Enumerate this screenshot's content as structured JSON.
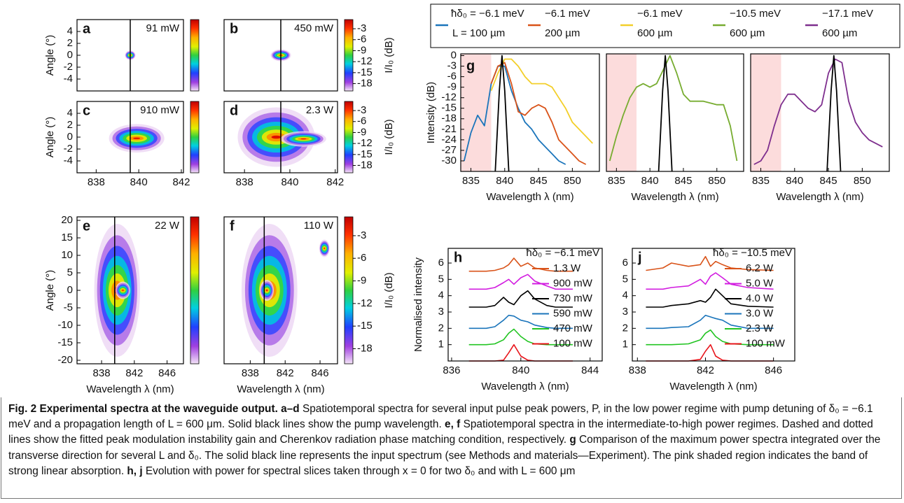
{
  "chart_data": [
    {
      "type": "heatmap",
      "panel_label": "a",
      "annotation": "91 mW",
      "ylabel": "Angle (°)",
      "xlim": [
        837.1,
        842.1
      ],
      "ylim": [
        -6,
        6
      ],
      "yticks": [
        -4,
        -2,
        0,
        2,
        4
      ],
      "pump_wavelength": 839.6,
      "emission": [
        {
          "x": 839.6,
          "y": 0,
          "dx": 0.25,
          "dy": 0.8
        }
      ],
      "colorbar": true
    },
    {
      "type": "heatmap",
      "panel_label": "b",
      "annotation": "450 mW",
      "xlim": [
        837.1,
        842.1
      ],
      "ylim": [
        -6,
        6
      ],
      "pump_wavelength": 839.6,
      "emission": [
        {
          "x": 839.6,
          "y": 0,
          "dx": 0.45,
          "dy": 1.0
        }
      ],
      "colorbar": {
        "label": "I/I₀ (dB)",
        "lim": [
          -20,
          -0.5
        ],
        "ticks": [
          -3,
          -6,
          -9,
          -12,
          -15,
          -18
        ]
      }
    },
    {
      "type": "heatmap",
      "panel_label": "c",
      "annotation": "910 mW",
      "ylabel": "Angle (°)",
      "xlim": [
        837.1,
        842.1
      ],
      "ylim": [
        -6,
        6
      ],
      "yticks": [
        -4,
        -2,
        0,
        2,
        4
      ],
      "xticks": [
        838,
        840,
        842
      ],
      "pump_wavelength": 839.6,
      "emission": [
        {
          "x": 839.9,
          "y": -0.2,
          "dx": 1.3,
          "dy": 2.4
        }
      ],
      "colorbar": true
    },
    {
      "type": "heatmap",
      "panel_label": "d",
      "annotation": "2.3 W",
      "xlim": [
        837.1,
        842.1
      ],
      "ylim": [
        -6,
        6
      ],
      "xticks": [
        838,
        840,
        842
      ],
      "pump_wavelength": 839.6,
      "emission": [
        {
          "x": 839.4,
          "y": 0,
          "dx": 1.7,
          "dy": 5.0
        },
        {
          "x": 840.6,
          "y": -0.3,
          "dx": 1.0,
          "dy": 1.3
        }
      ],
      "colorbar": {
        "label": "I/I₀ (dB)",
        "lim": [
          -20,
          -0.5
        ],
        "ticks": [
          -3,
          -6,
          -9,
          -12,
          -15,
          -18
        ]
      }
    },
    {
      "type": "heatmap",
      "panel_label": "e",
      "annotation": "22 W",
      "ylabel": "Angle (°)",
      "xlabel": "Wavelength λ (nm)",
      "xlim": [
        835,
        848
      ],
      "ylim": [
        -21,
        21
      ],
      "yticks": [
        -20,
        -15,
        -10,
        -5,
        0,
        5,
        10,
        15,
        20
      ],
      "xticks": [
        838,
        842,
        846
      ],
      "pump_wavelength": 839.6,
      "emission": [
        {
          "x": 839.9,
          "y": 0,
          "dx": 2.8,
          "dy": 19
        },
        {
          "x": 840.6,
          "y": 0,
          "dx": 0.9,
          "dy": 2.5
        }
      ],
      "colorbar": true
    },
    {
      "type": "heatmap",
      "panel_label": "f",
      "annotation": "110 W",
      "xlabel": "Wavelength λ (nm)",
      "xlim": [
        835,
        848
      ],
      "ylim": [
        -21,
        21
      ],
      "xticks": [
        838,
        842,
        846
      ],
      "pump_wavelength": 839.6,
      "emission": [
        {
          "x": 840.2,
          "y": 0,
          "dx": 3.2,
          "dy": 19
        },
        {
          "x": 839.9,
          "y": 0,
          "dx": 0.8,
          "dy": 3
        },
        {
          "x": 846.5,
          "y": 12,
          "dx": 0.6,
          "dy": 2.5
        }
      ],
      "colorbar": {
        "label": "I/I₀ (dB)",
        "lim": [
          -20,
          -0.5
        ],
        "ticks": [
          -3,
          -6,
          -9,
          -12,
          -15,
          -18
        ]
      }
    },
    {
      "type": "line",
      "panel_label": "g",
      "ylabel": "Intensity (dB)",
      "xlabel": "Wavelength λ (nm)",
      "xlim": [
        833.5,
        854
      ],
      "ylim": [
        -33,
        0.5
      ],
      "xticks": [
        835,
        840,
        845,
        850
      ],
      "yticks": [
        0,
        -3,
        -6,
        -9,
        -12,
        -15,
        -18,
        -21,
        -24,
        -27,
        -30
      ],
      "absorption_band": [
        833.5,
        838
      ],
      "x": [
        834,
        835,
        836,
        837,
        838,
        839,
        840,
        841,
        842,
        843,
        844,
        845,
        846,
        847,
        848,
        849,
        850,
        851,
        852,
        853
      ],
      "series": [
        {
          "name": "ħδ₀ = −6.1 meV",
          "length": "L = 100 µm",
          "color": "#1b75bb",
          "values": [
            -30,
            -22,
            -17,
            -20,
            -8,
            -3,
            -3,
            -10,
            -15,
            -19,
            -21,
            -24,
            -26,
            -28,
            -30,
            -31,
            null,
            null,
            null,
            null
          ]
        },
        {
          "name": "−6.1 meV",
          "length": "200 µm",
          "color": "#d95319",
          "values": [
            null,
            null,
            null,
            null,
            -8,
            -3,
            -2,
            -8,
            -16,
            -17,
            -15,
            -14,
            -15,
            -19,
            -24,
            -26,
            -28,
            -30,
            -31,
            null
          ]
        },
        {
          "name": "−6.1 meV",
          "length": "600 µm",
          "color": "#f3cf2a",
          "values": [
            null,
            null,
            null,
            null,
            -10,
            -5,
            -1,
            -1,
            -3,
            -6,
            -8,
            -8,
            -8,
            -9,
            -12,
            -15,
            -19,
            -21,
            -23,
            -25
          ]
        },
        {
          "color": "#000000",
          "x": [
            838.6,
            839.2,
            839.6,
            840.0,
            840.6
          ],
          "values": [
            -33,
            -10,
            0,
            -10,
            -33
          ]
        }
      ]
    },
    {
      "type": "line",
      "xlabel": "Wavelength λ (nm)",
      "xlim": [
        833.5,
        854
      ],
      "ylim": [
        -33,
        0.5
      ],
      "xticks": [
        835,
        840,
        845,
        850
      ],
      "absorption_band": [
        833.5,
        838
      ],
      "x": [
        834,
        835,
        836,
        837,
        838,
        839,
        840,
        841,
        842,
        843,
        844,
        845,
        846,
        847,
        848,
        849,
        850,
        851,
        852,
        853
      ],
      "series": [
        {
          "name": "−10.5 meV",
          "length": "600 µm",
          "color": "#77ac30",
          "values": [
            -30,
            -23,
            -17,
            -12,
            -9,
            -8,
            -9,
            -8,
            -4,
            0,
            -5,
            -11,
            -13,
            -13,
            -13,
            -13.5,
            -14,
            -14,
            -20,
            -30
          ]
        },
        {
          "color": "#000000",
          "x": [
            841.3,
            841.9,
            842.3,
            842.7,
            843.3
          ],
          "values": [
            -33,
            -10,
            0,
            -10,
            -33
          ]
        }
      ]
    },
    {
      "type": "line",
      "xlabel": "Wavelength λ (nm)",
      "xlim": [
        833.5,
        854
      ],
      "ylim": [
        -33,
        0.5
      ],
      "xticks": [
        835,
        840,
        845,
        850
      ],
      "absorption_band": [
        833.5,
        838
      ],
      "x": [
        834,
        835,
        836,
        837,
        838,
        839,
        840,
        841,
        842,
        843,
        844,
        845,
        846,
        847,
        848,
        849,
        850,
        851,
        852,
        853
      ],
      "series": [
        {
          "name": "−17.1 meV",
          "length": "600 µm",
          "color": "#7e2f8e",
          "values": [
            -31,
            -30,
            -27,
            -20,
            -14,
            -11,
            -11,
            -13,
            -15,
            -16,
            -14,
            -5,
            -1,
            -2,
            -13,
            -19,
            -22,
            -24,
            -25,
            -26
          ]
        },
        {
          "color": "#000000",
          "x": [
            844.8,
            845.4,
            845.8,
            846.2,
            846.8
          ],
          "values": [
            -33,
            -10,
            0,
            -10,
            -33
          ]
        }
      ]
    },
    {
      "type": "stacked-line",
      "panel_label": "h",
      "annotation": "ħδ₀ = −6.1 meV",
      "ylabel": "Normalised intensity",
      "xlabel": "Wavelength λ (nm)",
      "xlim": [
        835.8,
        844.7
      ],
      "ylim": [
        0,
        6.9
      ],
      "xticks": [
        836,
        840,
        844
      ],
      "yticks": [
        1,
        2,
        3,
        4,
        5,
        6
      ],
      "x": [
        837,
        838,
        838.5,
        839,
        839.3,
        839.6,
        840,
        840.4,
        840.8,
        841.5,
        842,
        843
      ],
      "series": [
        {
          "name": "100 mW",
          "color": "#e8151b",
          "values": [
            0,
            0,
            0,
            0.05,
            0.5,
            1.0,
            0.3,
            0.05,
            0,
            0,
            0,
            0
          ]
        },
        {
          "name": "470 mW",
          "color": "#21c421",
          "values": [
            1,
            1,
            1.05,
            1.3,
            1.7,
            1.95,
            1.5,
            1.2,
            1.05,
            1,
            1,
            1
          ]
        },
        {
          "name": "590 mW",
          "color": "#1b75bb",
          "values": [
            2,
            2,
            2.1,
            2.5,
            2.8,
            2.75,
            2.5,
            2.4,
            2.2,
            2.05,
            2,
            2
          ]
        },
        {
          "name": "730 mW",
          "color": "#000000",
          "values": [
            3.3,
            3.3,
            3.4,
            3.9,
            3.6,
            3.45,
            4.0,
            4.3,
            3.8,
            3.4,
            3.3,
            3.3
          ]
        },
        {
          "name": "900 mW",
          "color": "#d21ce0",
          "values": [
            4.4,
            4.4,
            4.5,
            4.8,
            5.0,
            4.7,
            5.1,
            5.3,
            4.9,
            4.6,
            4.4,
            4.4
          ]
        },
        {
          "name": "1.3 W",
          "color": "#d95319",
          "values": [
            5.5,
            5.5,
            5.55,
            5.7,
            5.9,
            6.3,
            5.8,
            6.0,
            5.7,
            5.55,
            5.5,
            5.5
          ]
        }
      ]
    },
    {
      "type": "stacked-line",
      "panel_label": "j",
      "annotation": "ħδ₀ = −10.5 meV",
      "xlabel": "Wavelength λ (nm)",
      "xlim": [
        837.7,
        847.25
      ],
      "ylim": [
        0,
        6.9
      ],
      "xticks": [
        838,
        842,
        846
      ],
      "yticks": [
        1,
        2,
        3,
        4,
        5,
        6
      ],
      "x": [
        838.5,
        839.5,
        840,
        841,
        841.7,
        842,
        842.3,
        842.6,
        843,
        843.5,
        844.5,
        846
      ],
      "series": [
        {
          "name": "100 mW",
          "color": "#e8151b",
          "values": [
            0,
            0,
            0,
            0,
            0.1,
            0.6,
            1.0,
            0.3,
            0.05,
            0,
            0,
            0
          ]
        },
        {
          "name": "2.3 W",
          "color": "#21c421",
          "values": [
            1,
            1,
            1,
            1.05,
            1.3,
            1.7,
            1.9,
            1.5,
            1.2,
            1.05,
            1,
            1
          ]
        },
        {
          "name": "3.0 W",
          "color": "#1b75bb",
          "values": [
            2,
            2,
            2.05,
            2.1,
            2.5,
            2.8,
            2.7,
            2.6,
            2.5,
            2.2,
            2,
            2
          ]
        },
        {
          "name": "4.0 W",
          "color": "#000000",
          "values": [
            3.3,
            3.3,
            3.4,
            3.5,
            3.7,
            3.6,
            3.9,
            4.4,
            4.0,
            3.5,
            3.35,
            3.3
          ]
        },
        {
          "name": "5.0 W",
          "color": "#d21ce0",
          "values": [
            4.4,
            4.4,
            4.5,
            4.6,
            5.0,
            4.7,
            5.2,
            5.4,
            5.1,
            4.7,
            4.5,
            4.4
          ]
        },
        {
          "name": "6.2 W",
          "color": "#d95319",
          "values": [
            5.55,
            5.7,
            6.0,
            5.8,
            5.9,
            6.4,
            5.8,
            6.1,
            5.9,
            5.7,
            5.6,
            5.55
          ]
        }
      ]
    }
  ],
  "caption": {
    "title": "Fig. 2 Experimental spectra at the waveguide output.",
    "panels": [
      {
        "label": "a–d",
        "text": "Spatiotemporal spectra for several input pulse peak powers, P, in the low power regime with pump detuning of δ₀ = −6.1 meV and a propagation length of L = 600 μm. Solid black lines show the pump wavelength."
      },
      {
        "label": "e, f",
        "text": "Spatiotemporal spectra in the intermediate-to-high power regimes. Dashed and dotted lines show the fitted peak modulation instability gain and Cherenkov radiation phase matching condition, respectively."
      },
      {
        "label": "g",
        "text": "Comparison of the maximum power spectra integrated over the transverse direction for several L and δ₀. The solid black line represents the input spectrum (see Methods and materials—Experiment). The pink shaded region indicates the band of strong linear absorption."
      },
      {
        "label": "h, j",
        "text": "Evolution with power for spectral slices taken through x = 0 for two δ₀ and with L = 600 μm"
      }
    ]
  }
}
